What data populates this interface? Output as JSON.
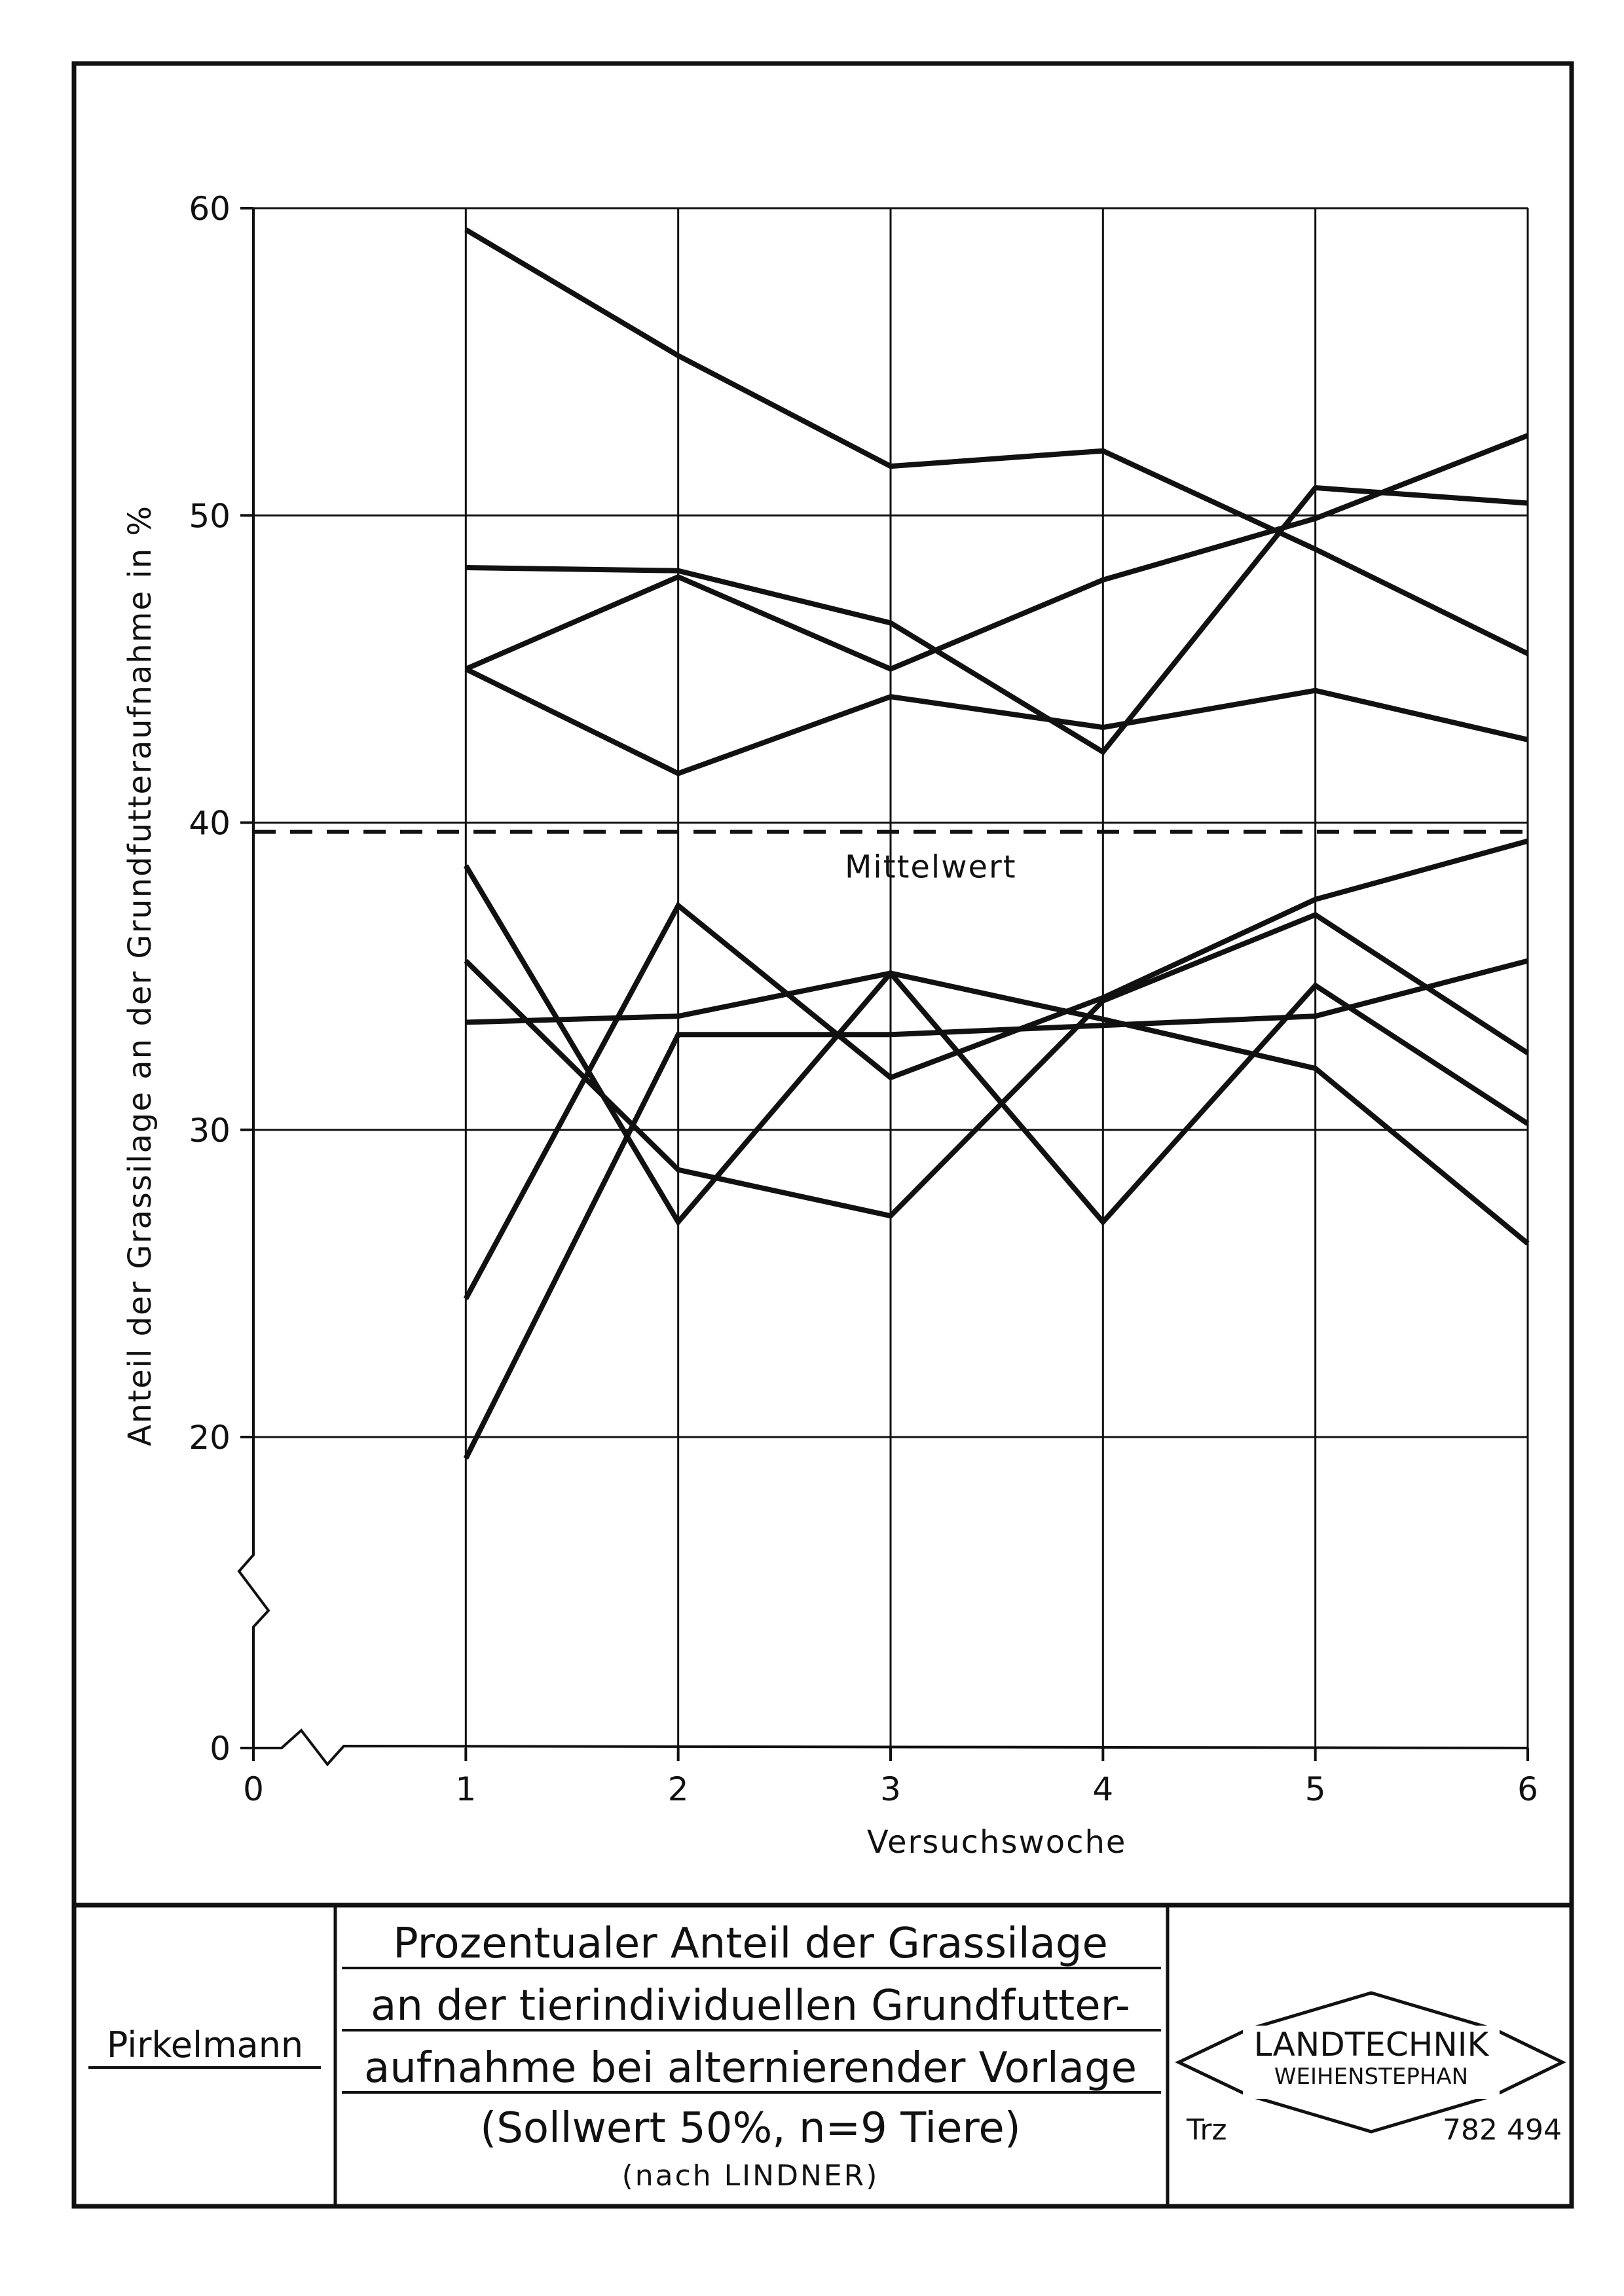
{
  "chart_data": {
    "type": "line",
    "title": "",
    "xlabel": "Versuchswoche",
    "ylabel": "Anteil der Grassilage an der Grundfutteraufnahme in %",
    "x": [
      1,
      2,
      3,
      4,
      5,
      6
    ],
    "x_ticks": [
      "0",
      "1",
      "2",
      "3",
      "4",
      "5",
      "6"
    ],
    "y_ticks": [
      "0",
      "20",
      "30",
      "40",
      "50",
      "60"
    ],
    "ylim": [
      0,
      60
    ],
    "y_axis_break": "between 0 and 20",
    "grid": true,
    "line_color": "#111111",
    "series": [
      {
        "values": [
          59.3,
          55.2,
          51.6,
          52.1,
          48.9,
          45.5
        ]
      },
      {
        "values": [
          48.3,
          48.2,
          46.5,
          42.3,
          50.9,
          50.4
        ]
      },
      {
        "values": [
          45.0,
          48.0,
          45.0,
          47.9,
          49.9,
          52.6
        ]
      },
      {
        "values": [
          45.0,
          41.6,
          44.1,
          43.1,
          44.3,
          42.7
        ]
      },
      {
        "values": [
          38.6,
          27.0,
          35.1,
          27.0,
          34.7,
          30.2
        ]
      },
      {
        "values": [
          35.5,
          28.7,
          27.2,
          34.2,
          37.0,
          32.5
        ]
      },
      {
        "values": [
          33.5,
          33.7,
          35.1,
          33.6,
          32.0,
          26.3
        ]
      },
      {
        "values": [
          24.5,
          37.3,
          31.7,
          34.3,
          37.5,
          39.4
        ]
      },
      {
        "values": [
          19.3,
          33.1,
          33.1,
          33.4,
          33.7,
          35.5
        ]
      }
    ],
    "reference_line": {
      "label": "Mittelwert",
      "value": 39.7,
      "style": "dashed"
    }
  },
  "title_block": {
    "author": "Pirkelmann",
    "title_lines": [
      "Prozentualer Anteil der Grassilage",
      "an der tierindividuellen Grundfutter-",
      "aufnahme bei alternierender Vorlage"
    ],
    "subtitle": "(Sollwert 50%, n=9 Tiere)",
    "source": "(nach LINDNER)",
    "logo_line1": "LANDTECHNIK",
    "logo_line2": "WEIHENSTEPHAN",
    "drawer": "Trz",
    "number": "782 494"
  }
}
